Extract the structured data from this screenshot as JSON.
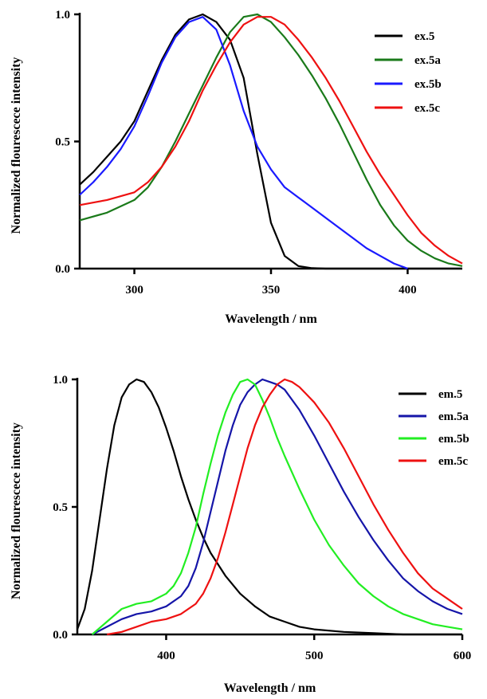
{
  "chart_data": [
    {
      "type": "line",
      "title": "",
      "xlabel": "Wavelength / nm",
      "ylabel": "Normalized flourescece intensity",
      "xlim": [
        280,
        420
      ],
      "ylim": [
        0,
        1.0
      ],
      "xticks": [
        300,
        350,
        400
      ],
      "yticks": [
        "0.0",
        "0.5",
        "1.0"
      ],
      "legend_position": "top-right",
      "series": [
        {
          "name": "ex.5",
          "color": "#000000",
          "x": [
            280,
            285,
            290,
            295,
            300,
            305,
            310,
            315,
            320,
            325,
            330,
            335,
            340,
            345,
            350,
            355,
            360,
            365,
            370,
            380,
            390,
            400,
            410,
            420
          ],
          "y": [
            0.33,
            0.38,
            0.44,
            0.5,
            0.58,
            0.7,
            0.82,
            0.92,
            0.98,
            1.0,
            0.97,
            0.9,
            0.75,
            0.45,
            0.18,
            0.05,
            0.01,
            0.002,
            0,
            0,
            0,
            0,
            0,
            0
          ]
        },
        {
          "name": "ex.5a",
          "color": "#1a7a1a",
          "x": [
            280,
            290,
            300,
            305,
            310,
            315,
            320,
            325,
            330,
            335,
            340,
            345,
            350,
            355,
            360,
            365,
            370,
            375,
            380,
            385,
            390,
            395,
            400,
            405,
            410,
            415,
            420
          ],
          "y": [
            0.19,
            0.22,
            0.27,
            0.32,
            0.4,
            0.5,
            0.61,
            0.72,
            0.83,
            0.93,
            0.99,
            1.0,
            0.97,
            0.91,
            0.84,
            0.76,
            0.67,
            0.57,
            0.46,
            0.35,
            0.25,
            0.17,
            0.11,
            0.07,
            0.04,
            0.02,
            0.01
          ]
        },
        {
          "name": "ex.5b",
          "color": "#1a1aff",
          "x": [
            280,
            285,
            290,
            295,
            300,
            305,
            310,
            315,
            320,
            325,
            330,
            335,
            340,
            345,
            350,
            355,
            360,
            365,
            370,
            375,
            380,
            385,
            390,
            395,
            400
          ],
          "y": [
            0.29,
            0.34,
            0.4,
            0.47,
            0.56,
            0.68,
            0.81,
            0.91,
            0.97,
            0.99,
            0.94,
            0.8,
            0.62,
            0.48,
            0.39,
            0.32,
            0.28,
            0.24,
            0.2,
            0.16,
            0.12,
            0.08,
            0.05,
            0.02,
            0.0
          ]
        },
        {
          "name": "ex.5c",
          "color": "#ee1111",
          "x": [
            280,
            290,
            300,
            305,
            310,
            315,
            320,
            325,
            330,
            335,
            340,
            345,
            350,
            355,
            360,
            365,
            370,
            375,
            380,
            385,
            390,
            395,
            400,
            405,
            410,
            415,
            420
          ],
          "y": [
            0.25,
            0.27,
            0.3,
            0.34,
            0.4,
            0.48,
            0.58,
            0.7,
            0.8,
            0.89,
            0.96,
            0.99,
            0.99,
            0.96,
            0.9,
            0.83,
            0.75,
            0.66,
            0.56,
            0.46,
            0.37,
            0.29,
            0.21,
            0.14,
            0.09,
            0.05,
            0.02
          ]
        }
      ]
    },
    {
      "type": "line",
      "title": "",
      "xlabel": "Wavelength / nm",
      "ylabel": "Normalized flourescece intensity",
      "xlim": [
        340,
        600
      ],
      "ylim": [
        0,
        1.0
      ],
      "xticks": [
        400,
        500,
        600
      ],
      "yticks": [
        "0.0",
        "0.5",
        "1.0"
      ],
      "legend_position": "top-right",
      "series": [
        {
          "name": "em.5",
          "color": "#000000",
          "x": [
            340,
            345,
            350,
            355,
            360,
            365,
            370,
            375,
            380,
            385,
            390,
            395,
            400,
            405,
            410,
            415,
            420,
            425,
            430,
            440,
            450,
            460,
            470,
            480,
            490,
            500,
            520,
            540,
            560,
            580,
            600
          ],
          "y": [
            0.02,
            0.1,
            0.25,
            0.45,
            0.65,
            0.82,
            0.93,
            0.98,
            1.0,
            0.99,
            0.95,
            0.89,
            0.81,
            0.72,
            0.62,
            0.53,
            0.45,
            0.38,
            0.32,
            0.23,
            0.16,
            0.11,
            0.07,
            0.05,
            0.03,
            0.02,
            0.01,
            0.005,
            0,
            0,
            0
          ]
        },
        {
          "name": "em.5a",
          "color": "#1515a8",
          "x": [
            350,
            360,
            370,
            380,
            390,
            400,
            410,
            415,
            420,
            425,
            430,
            435,
            440,
            445,
            450,
            455,
            460,
            465,
            470,
            475,
            480,
            490,
            500,
            510,
            520,
            530,
            540,
            550,
            560,
            570,
            580,
            590,
            600
          ],
          "y": [
            0.0,
            0.03,
            0.06,
            0.08,
            0.09,
            0.11,
            0.15,
            0.19,
            0.26,
            0.36,
            0.48,
            0.6,
            0.72,
            0.82,
            0.9,
            0.95,
            0.98,
            1.0,
            0.99,
            0.98,
            0.96,
            0.88,
            0.78,
            0.67,
            0.56,
            0.46,
            0.37,
            0.29,
            0.22,
            0.17,
            0.13,
            0.1,
            0.08
          ]
        },
        {
          "name": "em.5b",
          "color": "#22ee22",
          "x": [
            350,
            360,
            370,
            380,
            390,
            400,
            405,
            410,
            415,
            420,
            425,
            430,
            435,
            440,
            445,
            450,
            455,
            460,
            465,
            470,
            475,
            480,
            490,
            500,
            510,
            520,
            530,
            540,
            550,
            560,
            570,
            580,
            590,
            600
          ],
          "y": [
            0.0,
            0.05,
            0.1,
            0.12,
            0.13,
            0.16,
            0.19,
            0.24,
            0.32,
            0.42,
            0.55,
            0.67,
            0.78,
            0.87,
            0.94,
            0.99,
            1.0,
            0.98,
            0.92,
            0.85,
            0.77,
            0.7,
            0.57,
            0.45,
            0.35,
            0.27,
            0.2,
            0.15,
            0.11,
            0.08,
            0.06,
            0.04,
            0.03,
            0.02
          ]
        },
        {
          "name": "em.5c",
          "color": "#ee1111",
          "x": [
            360,
            370,
            380,
            390,
            400,
            410,
            420,
            425,
            430,
            435,
            440,
            445,
            450,
            455,
            460,
            465,
            470,
            475,
            480,
            485,
            490,
            500,
            510,
            520,
            530,
            540,
            550,
            560,
            570,
            580,
            590,
            600
          ],
          "y": [
            0.0,
            0.01,
            0.03,
            0.05,
            0.06,
            0.08,
            0.12,
            0.16,
            0.22,
            0.3,
            0.4,
            0.51,
            0.62,
            0.73,
            0.82,
            0.89,
            0.94,
            0.98,
            1.0,
            0.99,
            0.97,
            0.91,
            0.83,
            0.73,
            0.62,
            0.51,
            0.41,
            0.32,
            0.24,
            0.18,
            0.14,
            0.1
          ]
        }
      ]
    }
  ]
}
